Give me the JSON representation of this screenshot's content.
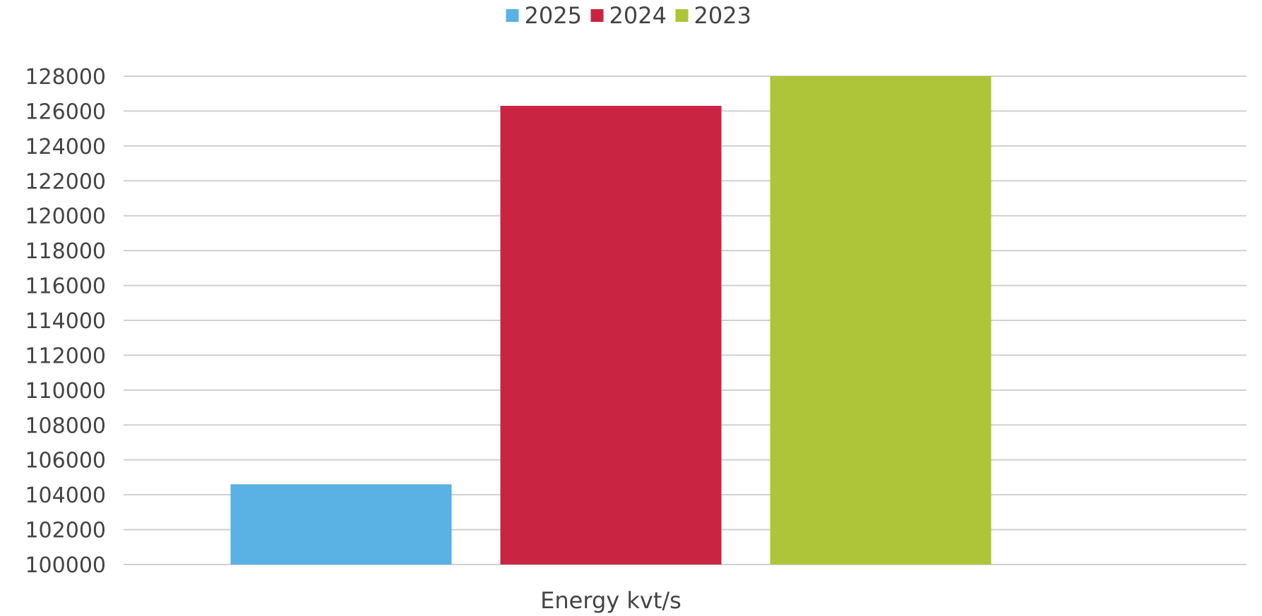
{
  "chart_data": {
    "type": "bar",
    "title": "",
    "categories": [
      "Energy kvt/s"
    ],
    "xlabel": "",
    "ylabel": "",
    "ylim": [
      100000,
      128000
    ],
    "y_ticks": [
      100000,
      102000,
      104000,
      106000,
      108000,
      110000,
      112000,
      114000,
      116000,
      118000,
      120000,
      122000,
      124000,
      126000,
      128000
    ],
    "grid": true,
    "legend_position": "top-center",
    "series": [
      {
        "name": "2025",
        "color": "#5ab1e3",
        "values": [
          104600
        ]
      },
      {
        "name": "2024",
        "color": "#c92442",
        "values": [
          126300
        ]
      },
      {
        "name": "2023",
        "color": "#aec53a",
        "values": [
          128000
        ]
      }
    ]
  }
}
